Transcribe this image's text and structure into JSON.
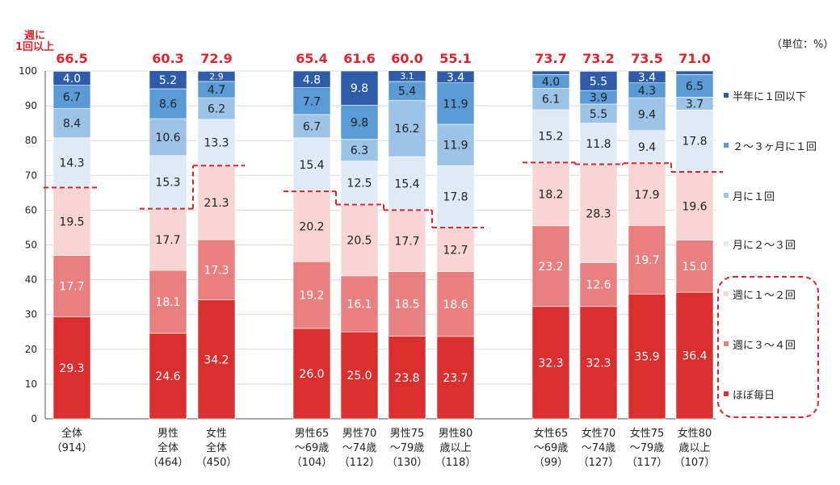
{
  "unit_label": "（単位：%）",
  "lead_label": "週に\n1回以上",
  "legend": [
    {
      "label": "半年に１回以下",
      "color": "#2e5ca8"
    },
    {
      "label": "２～３ヶ月に１回",
      "color": "#5b9bd5"
    },
    {
      "label": "月に１回",
      "color": "#9dc3e6"
    },
    {
      "label": "月に２～３回",
      "color": "#deebf7"
    },
    {
      "label": "週に１～２回",
      "color": "#f8d4d4"
    },
    {
      "label": "週に３～４回",
      "color": "#e88080"
    },
    {
      "label": "ほぼ毎日",
      "color": "#d9302f"
    }
  ],
  "chart_data": {
    "type": "bar",
    "stacked": true,
    "ylim": [
      0,
      100
    ],
    "yticks": [
      0,
      10,
      20,
      30,
      40,
      50,
      60,
      70,
      80,
      90,
      100
    ],
    "categories": [
      {
        "label": "全体",
        "n": "（914）"
      },
      {
        "label": "男性\n全体",
        "n": "（464）"
      },
      {
        "label": "女性\n全体",
        "n": "（450）"
      },
      {
        "label": "男性65\n～69歳",
        "n": "（104）"
      },
      {
        "label": "男性70\n～74歳",
        "n": "（112）"
      },
      {
        "label": "男性75\n～79歳",
        "n": "（130）"
      },
      {
        "label": "男性80\n歳以上",
        "n": "（118）"
      },
      {
        "label": "女性65\n～69歳",
        "n": "（99）"
      },
      {
        "label": "女性70\n～74歳",
        "n": "（127）"
      },
      {
        "label": "女性75\n～79歳",
        "n": "（117）"
      },
      {
        "label": "女性80\n歳以上",
        "n": "（107）"
      }
    ],
    "group_index": [
      0,
      1,
      1,
      2,
      2,
      2,
      2,
      3,
      3,
      3,
      3
    ],
    "weekly_totals": [
      "66.5",
      "60.3",
      "72.9",
      "65.4",
      "61.6",
      "60.0",
      "55.1",
      "73.7",
      "73.2",
      "73.5",
      "71.0"
    ],
    "series": [
      {
        "name": "ほぼ毎日",
        "values": [
          29.3,
          24.6,
          34.2,
          26.0,
          25.0,
          23.8,
          23.7,
          32.3,
          32.3,
          35.9,
          36.4
        ],
        "labels": [
          "29.3",
          "24.6",
          "34.2",
          "26.0",
          "25.0",
          "23.8",
          "23.7",
          "32.3",
          "32.3",
          "35.9",
          "36.4"
        ]
      },
      {
        "name": "週に３～４回",
        "values": [
          17.7,
          18.1,
          17.3,
          19.2,
          16.1,
          18.5,
          18.6,
          23.2,
          12.6,
          19.7,
          15.0
        ],
        "labels": [
          "17.7",
          "18.1",
          "17.3",
          "19.2",
          "16.1",
          "18.5",
          "18.6",
          "23.2",
          "12.6",
          "19.7",
          "15.0"
        ]
      },
      {
        "name": "週に１～２回",
        "values": [
          19.5,
          17.7,
          21.3,
          20.2,
          20.5,
          17.7,
          12.7,
          18.2,
          28.3,
          17.9,
          19.6
        ],
        "labels": [
          "19.5",
          "17.7",
          "21.3",
          "20.2",
          "20.5",
          "17.7",
          "12.7",
          "18.2",
          "28.3",
          "17.9",
          "19.6"
        ]
      },
      {
        "name": "月に２～３回",
        "values": [
          14.3,
          15.3,
          13.3,
          15.4,
          12.5,
          15.4,
          17.8,
          15.2,
          11.8,
          9.4,
          17.8
        ],
        "labels": [
          "14.3",
          "15.3",
          "13.3",
          "15.4",
          "12.5",
          "15.4",
          "17.8",
          "15.2",
          "11.8",
          "9.4",
          "17.8"
        ]
      },
      {
        "name": "月に１回",
        "values": [
          8.4,
          10.6,
          6.2,
          6.7,
          6.3,
          16.2,
          11.9,
          6.1,
          5.5,
          9.4,
          3.7
        ],
        "labels": [
          "8.4",
          "10.6",
          "6.2",
          "6.7",
          "6.3",
          "16.2",
          "11.9",
          "6.1",
          "5.5",
          "9.4",
          "3.7"
        ]
      },
      {
        "name": "２～３ヶ月に１回",
        "values": [
          6.7,
          8.6,
          4.7,
          7.7,
          9.8,
          5.4,
          11.9,
          4.0,
          3.9,
          4.3,
          6.5
        ],
        "labels": [
          "6.7",
          "8.6",
          "4.7",
          "7.7",
          "9.8",
          "5.4",
          "11.9",
          "4.0",
          "3.9",
          "4.3",
          "6.5"
        ]
      },
      {
        "name": "半年に１回以下",
        "values": [
          4.0,
          5.2,
          2.9,
          4.8,
          9.8,
          3.1,
          3.4,
          1.0,
          5.5,
          3.4,
          1.0
        ],
        "labels": [
          "4.0",
          "5.2",
          "2.9",
          "4.8",
          "9.8",
          "3.1",
          "3.4",
          "",
          "5.5",
          "3.4",
          ""
        ]
      }
    ]
  }
}
